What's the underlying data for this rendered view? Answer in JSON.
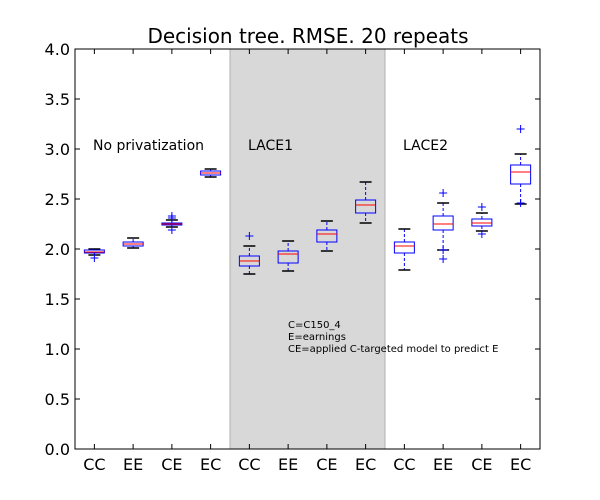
{
  "chart_data": {
    "type": "box",
    "title": "Decision tree. RMSE. 20 repeats",
    "xlabel": "",
    "ylabel": "",
    "ylim": [
      0,
      4
    ],
    "yticks": [
      "0.0",
      "0.5",
      "1.0",
      "1.5",
      "2.0",
      "2.5",
      "3.0",
      "3.5",
      "4.0"
    ],
    "categories": [
      "CC",
      "EE",
      "CE",
      "EC",
      "CC",
      "EE",
      "CE",
      "EC",
      "CC",
      "EE",
      "CE",
      "EC"
    ],
    "groups": [
      {
        "label": "No privatization",
        "start": 0,
        "end": 3,
        "shaded": false
      },
      {
        "label": "LACE1",
        "start": 4,
        "end": 7,
        "shaded": true
      },
      {
        "label": "LACE2",
        "start": 8,
        "end": 11,
        "shaded": false
      }
    ],
    "boxes": [
      {
        "category": "CC",
        "whisker_low": 1.94,
        "q1": 1.96,
        "median": 1.97,
        "q3": 1.99,
        "whisker_high": 2.0,
        "fliers": [
          1.91
        ]
      },
      {
        "category": "EE",
        "whisker_low": 2.01,
        "q1": 2.03,
        "median": 2.05,
        "q3": 2.07,
        "whisker_high": 2.11,
        "fliers": []
      },
      {
        "category": "CE",
        "whisker_low": 2.22,
        "q1": 2.24,
        "median": 2.25,
        "q3": 2.26,
        "whisker_high": 2.29,
        "fliers": [
          2.19,
          2.31,
          2.33
        ]
      },
      {
        "category": "EC",
        "whisker_low": 2.72,
        "q1": 2.74,
        "median": 2.76,
        "q3": 2.78,
        "whisker_high": 2.8,
        "fliers": []
      },
      {
        "category": "CC",
        "whisker_low": 1.75,
        "q1": 1.83,
        "median": 1.88,
        "q3": 1.93,
        "whisker_high": 2.03,
        "fliers": [
          2.13
        ]
      },
      {
        "category": "EE",
        "whisker_low": 1.78,
        "q1": 1.86,
        "median": 1.95,
        "q3": 1.98,
        "whisker_high": 2.08,
        "fliers": []
      },
      {
        "category": "CE",
        "whisker_low": 1.98,
        "q1": 2.07,
        "median": 2.15,
        "q3": 2.19,
        "whisker_high": 2.28,
        "fliers": []
      },
      {
        "category": "EC",
        "whisker_low": 2.26,
        "q1": 2.36,
        "median": 2.44,
        "q3": 2.49,
        "whisker_high": 2.67,
        "fliers": []
      },
      {
        "category": "CC",
        "whisker_low": 1.79,
        "q1": 1.96,
        "median": 2.03,
        "q3": 2.07,
        "whisker_high": 2.2,
        "fliers": []
      },
      {
        "category": "EE",
        "whisker_low": 1.99,
        "q1": 2.19,
        "median": 2.25,
        "q3": 2.33,
        "whisker_high": 2.46,
        "fliers": [
          1.9,
          1.99,
          2.56
        ]
      },
      {
        "category": "CE",
        "whisker_low": 2.18,
        "q1": 2.23,
        "median": 2.26,
        "q3": 2.3,
        "whisker_high": 2.36,
        "fliers": [
          2.15,
          2.42
        ]
      },
      {
        "category": "EC",
        "whisker_low": 2.45,
        "q1": 2.65,
        "median": 2.77,
        "q3": 2.84,
        "whisker_high": 2.95,
        "fliers": [
          2.46,
          3.2
        ]
      }
    ],
    "annotations": [
      "C=C150_4",
      "E=earnings",
      "CE=applied C-targeted model to predict E"
    ],
    "colors": {
      "box": "#0000ff",
      "median": "#ff0000",
      "whisker": "#000000",
      "flier": "#0000ff",
      "shade": "#d8d8d8"
    },
    "grid": false,
    "legend": "none"
  }
}
